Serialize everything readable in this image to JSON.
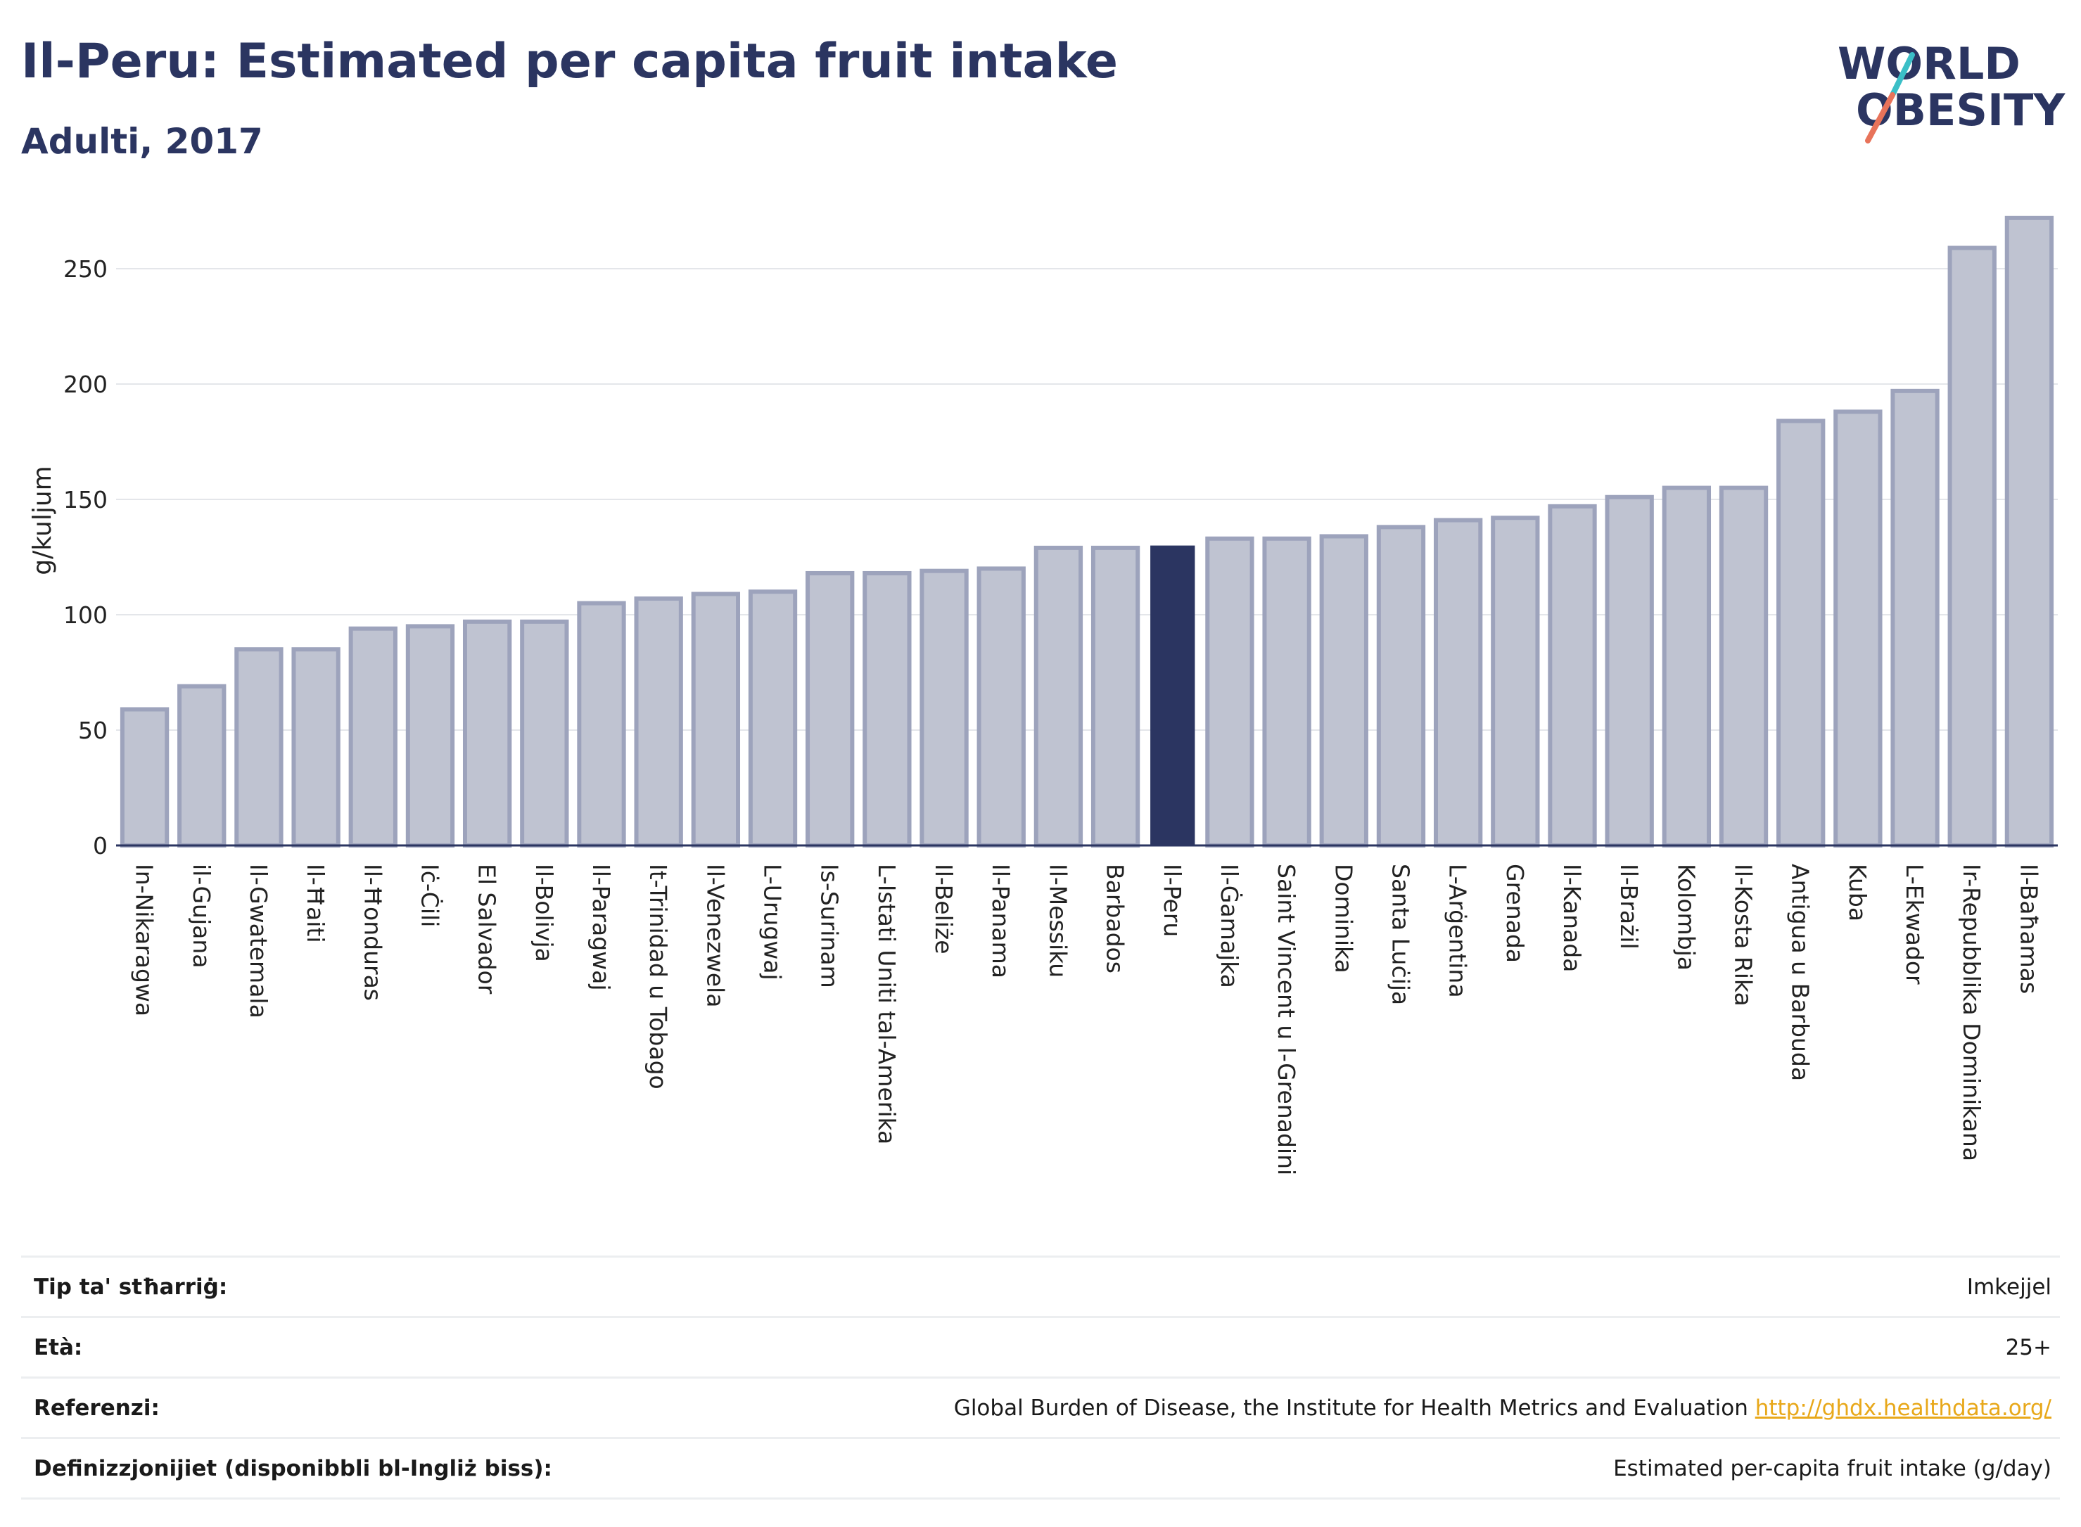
{
  "header": {
    "title": "Il-Peru: Estimated per capita fruit intake",
    "subtitle": "Adulti, 2017"
  },
  "logo": {
    "line1": "WORLD",
    "line2": "OBESITY",
    "colors": {
      "text": "#2b3561",
      "slash_top": "#3bbfc7",
      "slash_bottom": "#e8735a"
    }
  },
  "colors": {
    "bar_fill": "#bfc3d1",
    "bar_stroke": "#9da3bc",
    "highlight": "#2b3561",
    "grid": "#e4e6ea",
    "axis": "#2b3561"
  },
  "chart_data": {
    "type": "bar",
    "ylabel": "g/kuljum",
    "ylim": [
      0,
      275
    ],
    "yticks": [
      0,
      50,
      100,
      150,
      200,
      250
    ],
    "grid": true,
    "highlight": "Il-Peru",
    "categories": [
      "In-Nikaragwa",
      "il-Gujana",
      "Il-Gwatemala",
      "Il-Ħaiti",
      "Il-Ħonduras",
      "Iċ-Ċili",
      "El Salvador",
      "Il-Bolivja",
      "Il-Paragwaj",
      "It-Trinidad u Tobago",
      "Il-Venezwela",
      "L-Urugwaj",
      "Is-Surinam",
      "L-Istati Uniti tal-Amerika",
      "Il-Beliże",
      "Il-Panama",
      "Il-Messiku",
      "Barbados",
      "Il-Peru",
      "Il-Ġamajka",
      "Saint Vincent u l-Grenadini",
      "Dominika",
      "Santa Luċija",
      "L-Arġentina",
      "Grenada",
      "Il-Kanada",
      "Il-Brażil",
      "Kolombja",
      "Il-Kosta Rika",
      "Antigua u Barbuda",
      "Kuba",
      "L-Ekwador",
      "Ir-Repubblika Dominikana",
      "Il-Baħamas"
    ],
    "values": [
      59,
      69,
      85,
      85,
      94,
      95,
      97,
      97,
      105,
      107,
      109,
      110,
      118,
      118,
      119,
      120,
      129,
      129,
      130,
      133,
      133,
      134,
      138,
      141,
      142,
      147,
      151,
      155,
      155,
      184,
      188,
      197,
      259,
      272
    ]
  },
  "meta": [
    {
      "label": "Tip ta' stħarriġ:",
      "value": "Imkejjel"
    },
    {
      "label": "Età:",
      "value": "25+"
    },
    {
      "label": "Referenzi:",
      "value": "Global Burden of Disease, the Institute for Health Metrics and Evaluation",
      "link": "http://ghdx.healthdata.org/"
    },
    {
      "label": "Definizzjonijiet (disponibbli bl-Ingliż biss):",
      "value": "Estimated per-capita fruit intake (g/day)"
    }
  ]
}
